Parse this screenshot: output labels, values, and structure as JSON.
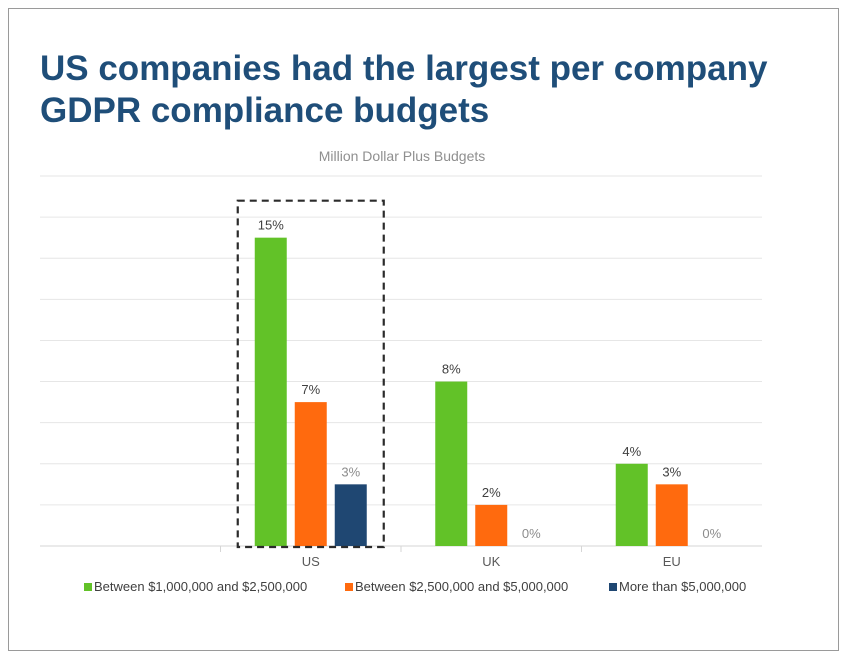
{
  "slide": {
    "title_line1": "US companies had the largest per company",
    "title_line2": "GDPR compliance budgets"
  },
  "chart_data": {
    "type": "bar",
    "title": "Million Dollar Plus Budgets",
    "xlabel": "",
    "ylabel": "",
    "ylim": [
      0,
      18
    ],
    "grid": true,
    "legend_position": "bottom",
    "categories": [
      "",
      "US",
      "UK",
      "EU"
    ],
    "series": [
      {
        "name": "Between $1,000,000 and $2,500,000",
        "color": "#62c228",
        "values": [
          null,
          15,
          8,
          4
        ],
        "labels": [
          "",
          "15%",
          "8%",
          "4%"
        ]
      },
      {
        "name": "Between $2,500,000 and $5,000,000",
        "color": "#ff6a0e",
        "values": [
          null,
          7,
          2,
          3
        ],
        "labels": [
          "",
          "7%",
          "2%",
          "3%"
        ]
      },
      {
        "name": "More than $5,000,000",
        "color": "#1f4772",
        "values": [
          null,
          3,
          0,
          0
        ],
        "labels": [
          "",
          "3%",
          "0%",
          "0%"
        ]
      }
    ],
    "highlight": {
      "category": "US",
      "style": "dashed-box"
    }
  }
}
